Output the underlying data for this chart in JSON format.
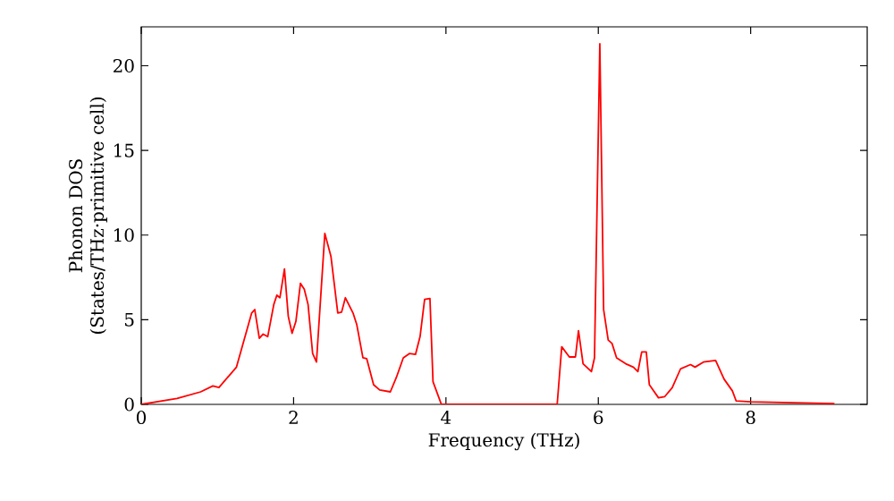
{
  "chart_data": {
    "type": "line",
    "xlabel": "Frequency (THz)",
    "ylabel": "Phonon DOS (States/THz·primitive cell)",
    "xlim": [
      0,
      9.53
    ],
    "ylim": [
      0,
      22.3
    ],
    "xticks": [
      0,
      2,
      4,
      6,
      8
    ],
    "yticks": [
      0,
      5,
      10,
      15,
      20
    ],
    "marker": "none",
    "line_style": "solid",
    "x": [
      0,
      0.47,
      0.78,
      0.94,
      1.02,
      1.25,
      1.45,
      1.49,
      1.55,
      1.6,
      1.66,
      1.74,
      1.78,
      1.82,
      1.88,
      1.93,
      1.98,
      2.03,
      2.09,
      2.14,
      2.19,
      2.25,
      2.3,
      2.41,
      2.49,
      2.58,
      2.63,
      2.68,
      2.78,
      2.83,
      2.91,
      2.96,
      3.05,
      3.13,
      3.27,
      3.35,
      3.44,
      3.52,
      3.6,
      3.66,
      3.72,
      3.79,
      3.83,
      3.94,
      5.46,
      5.52,
      5.62,
      5.7,
      5.74,
      5.8,
      5.91,
      5.95,
      6.02,
      6.07,
      6.13,
      6.18,
      6.24,
      6.36,
      6.46,
      6.52,
      6.57,
      6.63,
      6.67,
      6.79,
      6.87,
      6.97,
      7.08,
      7.21,
      7.27,
      7.38,
      7.54,
      7.65,
      7.76,
      7.81,
      8.0,
      9.1
    ],
    "series": [
      {
        "color": "#ff0000",
        "values": [
          0,
          0.35,
          0.74,
          1.09,
          1.0,
          2.2,
          5.4,
          5.6,
          3.9,
          4.15,
          4.0,
          5.9,
          6.45,
          6.3,
          8.0,
          5.2,
          4.2,
          4.9,
          7.15,
          6.8,
          5.9,
          3.0,
          2.5,
          10.1,
          8.75,
          5.4,
          5.45,
          6.3,
          5.4,
          4.7,
          2.75,
          2.7,
          1.16,
          0.85,
          0.74,
          1.6,
          2.75,
          3.0,
          2.95,
          4.0,
          6.2,
          6.25,
          1.34,
          0,
          0,
          3.4,
          2.8,
          2.8,
          4.35,
          2.4,
          1.94,
          2.75,
          21.3,
          5.6,
          3.8,
          3.6,
          2.75,
          2.4,
          2.2,
          1.94,
          3.1,
          3.1,
          1.16,
          0.39,
          0.45,
          0.98,
          2.1,
          2.35,
          2.2,
          2.5,
          2.6,
          1.5,
          0.8,
          0.2,
          0.15,
          0.05
        ]
      }
    ]
  }
}
